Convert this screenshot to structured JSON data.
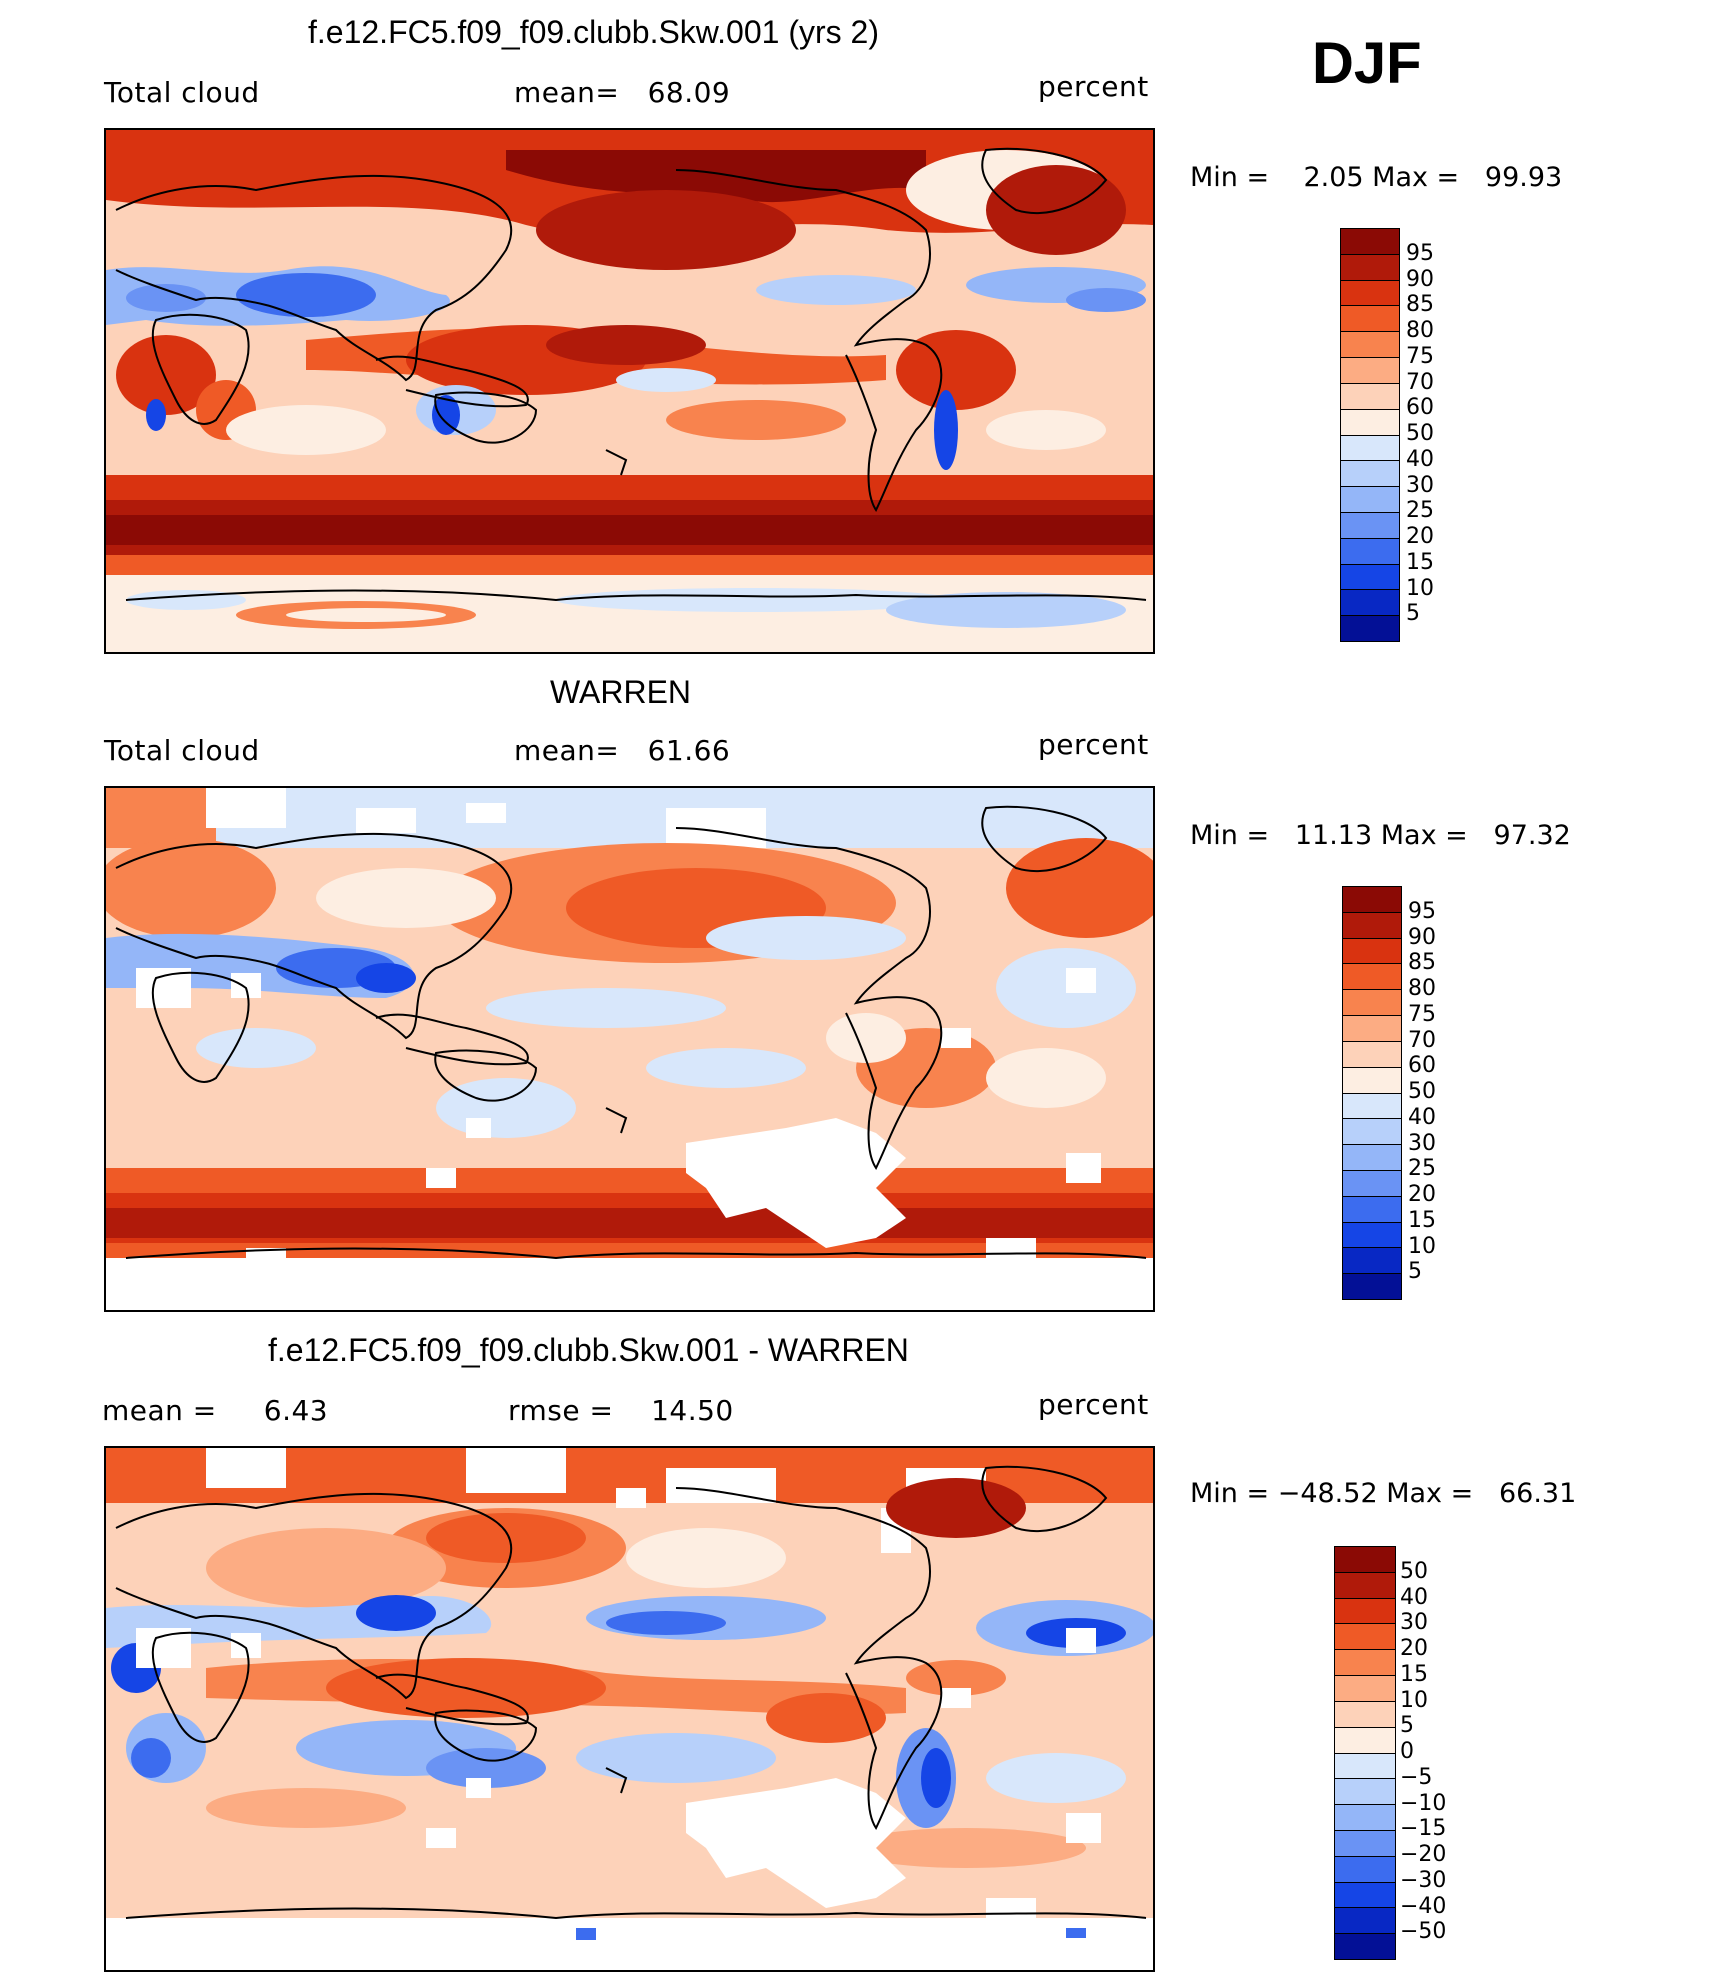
{
  "season": "DJF",
  "panels": [
    {
      "title": "f.e12.FC5.f09_f09.clubb.Skw.001 (yrs 2)",
      "left_label": "Total cloud",
      "center_label": "mean=   68.09",
      "right_label": "percent",
      "minmax": "Min =    2.05 Max =   99.93",
      "colorbar": {
        "colors": [
          "#8b0a05",
          "#b01a0a",
          "#d93310",
          "#ef5a26",
          "#f8834e",
          "#fcac83",
          "#fdd2b9",
          "#fdeee2",
          "#d8e7fb",
          "#b7d0fa",
          "#94b6f8",
          "#6a93f4",
          "#3c6cef",
          "#1545e6",
          "#0828c4",
          "#031096"
        ],
        "labels": [
          "95",
          "90",
          "85",
          "80",
          "75",
          "70",
          "60",
          "50",
          "40",
          "30",
          "25",
          "20",
          "15",
          "10",
          "5"
        ]
      }
    },
    {
      "title": "WARREN",
      "left_label": "Total cloud",
      "center_label": "mean=   61.66",
      "right_label": "percent",
      "minmax": "Min =   11.13 Max =   97.32",
      "colorbar": {
        "colors": [
          "#8b0a05",
          "#b01a0a",
          "#d93310",
          "#ef5a26",
          "#f8834e",
          "#fcac83",
          "#fdd2b9",
          "#fdeee2",
          "#d8e7fb",
          "#b7d0fa",
          "#94b6f8",
          "#6a93f4",
          "#3c6cef",
          "#1545e6",
          "#0828c4",
          "#031096"
        ],
        "labels": [
          "95",
          "90",
          "85",
          "80",
          "75",
          "70",
          "60",
          "50",
          "40",
          "30",
          "25",
          "20",
          "15",
          "10",
          "5"
        ]
      }
    },
    {
      "title": "f.e12.FC5.f09_f09.clubb.Skw.001 - WARREN",
      "left_label": "mean =     6.43",
      "center_label": "rmse =    14.50",
      "right_label": "percent",
      "minmax": "Min = −48.52 Max =   66.31",
      "colorbar": {
        "colors": [
          "#8b0a05",
          "#b01a0a",
          "#d93310",
          "#ef5a26",
          "#f8834e",
          "#fcac83",
          "#fdd2b9",
          "#fdeee2",
          "#d8e7fb",
          "#b7d0fa",
          "#94b6f8",
          "#6a93f4",
          "#3c6cef",
          "#1545e6",
          "#0828c4",
          "#031096"
        ],
        "labels": [
          "50",
          "40",
          "30",
          "20",
          "15",
          "10",
          "5",
          "0",
          "−5",
          "−10",
          "−15",
          "−20",
          "−30",
          "−40",
          "−50"
        ]
      }
    }
  ]
}
